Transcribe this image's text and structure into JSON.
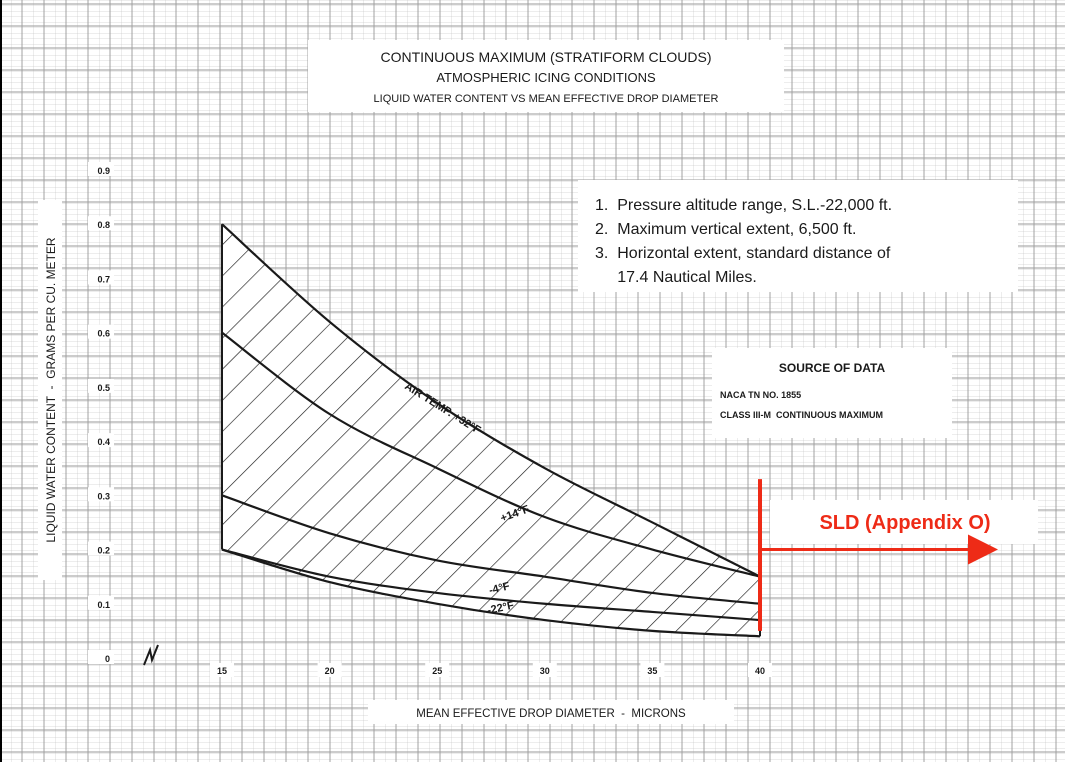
{
  "chart_data": {
    "type": "area",
    "title": "CONTINUOUS MAXIMUM (STRATIFORM CLOUDS)",
    "subtitle_1": "ATMOSPHERIC ICING CONDITIONS",
    "subtitle_2": "LIQUID WATER CONTENT  VS  MEAN EFFECTIVE DROP DIAMETER",
    "xlabel": "MEAN EFFECTIVE DROP DIAMETER  -  MICRONS",
    "ylabel": "LIQUID WATER CONTENT  -  GRAMS PER CU. METER",
    "xlim": [
      15,
      40
    ],
    "ylim": [
      0,
      0.9
    ],
    "x_ticks": [
      "15",
      "20",
      "25",
      "30",
      "35",
      "40"
    ],
    "y_ticks": [
      "0",
      "0.1",
      "0.2",
      "0.3",
      "0.4",
      "0.5",
      "0.6",
      "0.7",
      "0.8",
      "0.9"
    ],
    "grid": true,
    "x": [
      15,
      20,
      25,
      30,
      35,
      40
    ],
    "series": [
      {
        "name": "",
        "values": [
          0.8,
          0.62,
          0.47,
          0.35,
          0.25,
          0.15
        ]
      },
      {
        "name": "AIR TEMP. +32°F",
        "values": [
          0.6,
          0.45,
          0.35,
          0.26,
          0.2,
          0.15
        ]
      },
      {
        "name": "+14°F",
        "values": [
          0.3,
          0.23,
          0.18,
          0.15,
          0.12,
          0.1
        ]
      },
      {
        "name": "-4°F",
        "values": [
          0.2,
          0.15,
          0.12,
          0.1,
          0.085,
          0.07
        ]
      },
      {
        "name": "-22°F",
        "values": [
          0.2,
          0.14,
          0.1,
          0.07,
          0.05,
          0.04
        ]
      }
    ],
    "notes": [
      "1.  Pressure altitude range, S.L.-22,000 ft.",
      "2.  Maximum vertical extent, 6,500 ft.",
      "3.  Horizontal extent, standard distance of",
      "     17.4 Nautical Miles."
    ],
    "source_title": "SOURCE OF DATA",
    "source_lines": [
      "NACA TN NO. 1855",
      "CLASS III-M  CONTINUOUS MAXIMUM"
    ],
    "annotation": {
      "text": "SLD (Appendix O)",
      "x_data": 40,
      "y_from": 0.05,
      "y_to": 0.33,
      "arrow_y": 0.2,
      "color": "#ee2b17"
    },
    "colors": {
      "grid": "#9a9a9a",
      "ink": "#1a1a1a"
    }
  }
}
